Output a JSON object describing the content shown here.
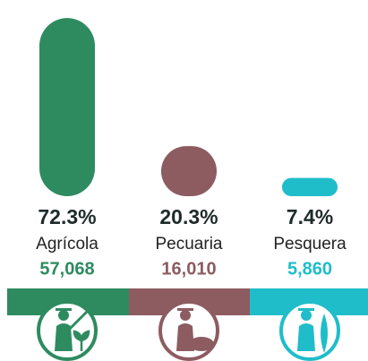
{
  "chart_data": {
    "type": "bar",
    "categories": [
      "Agrícola",
      "Pecuaria",
      "Pesquera"
    ],
    "values": [
      72.3,
      20.3,
      7.4
    ],
    "value_labels": [
      "72.3%",
      "20.3%",
      "7.4%"
    ],
    "counts": [
      57068,
      16010,
      5860
    ],
    "count_labels": [
      "57,068",
      "16,010",
      "5,860"
    ],
    "colors": [
      "#2e8b60",
      "#8c5c61",
      "#1fbdc9"
    ]
  }
}
